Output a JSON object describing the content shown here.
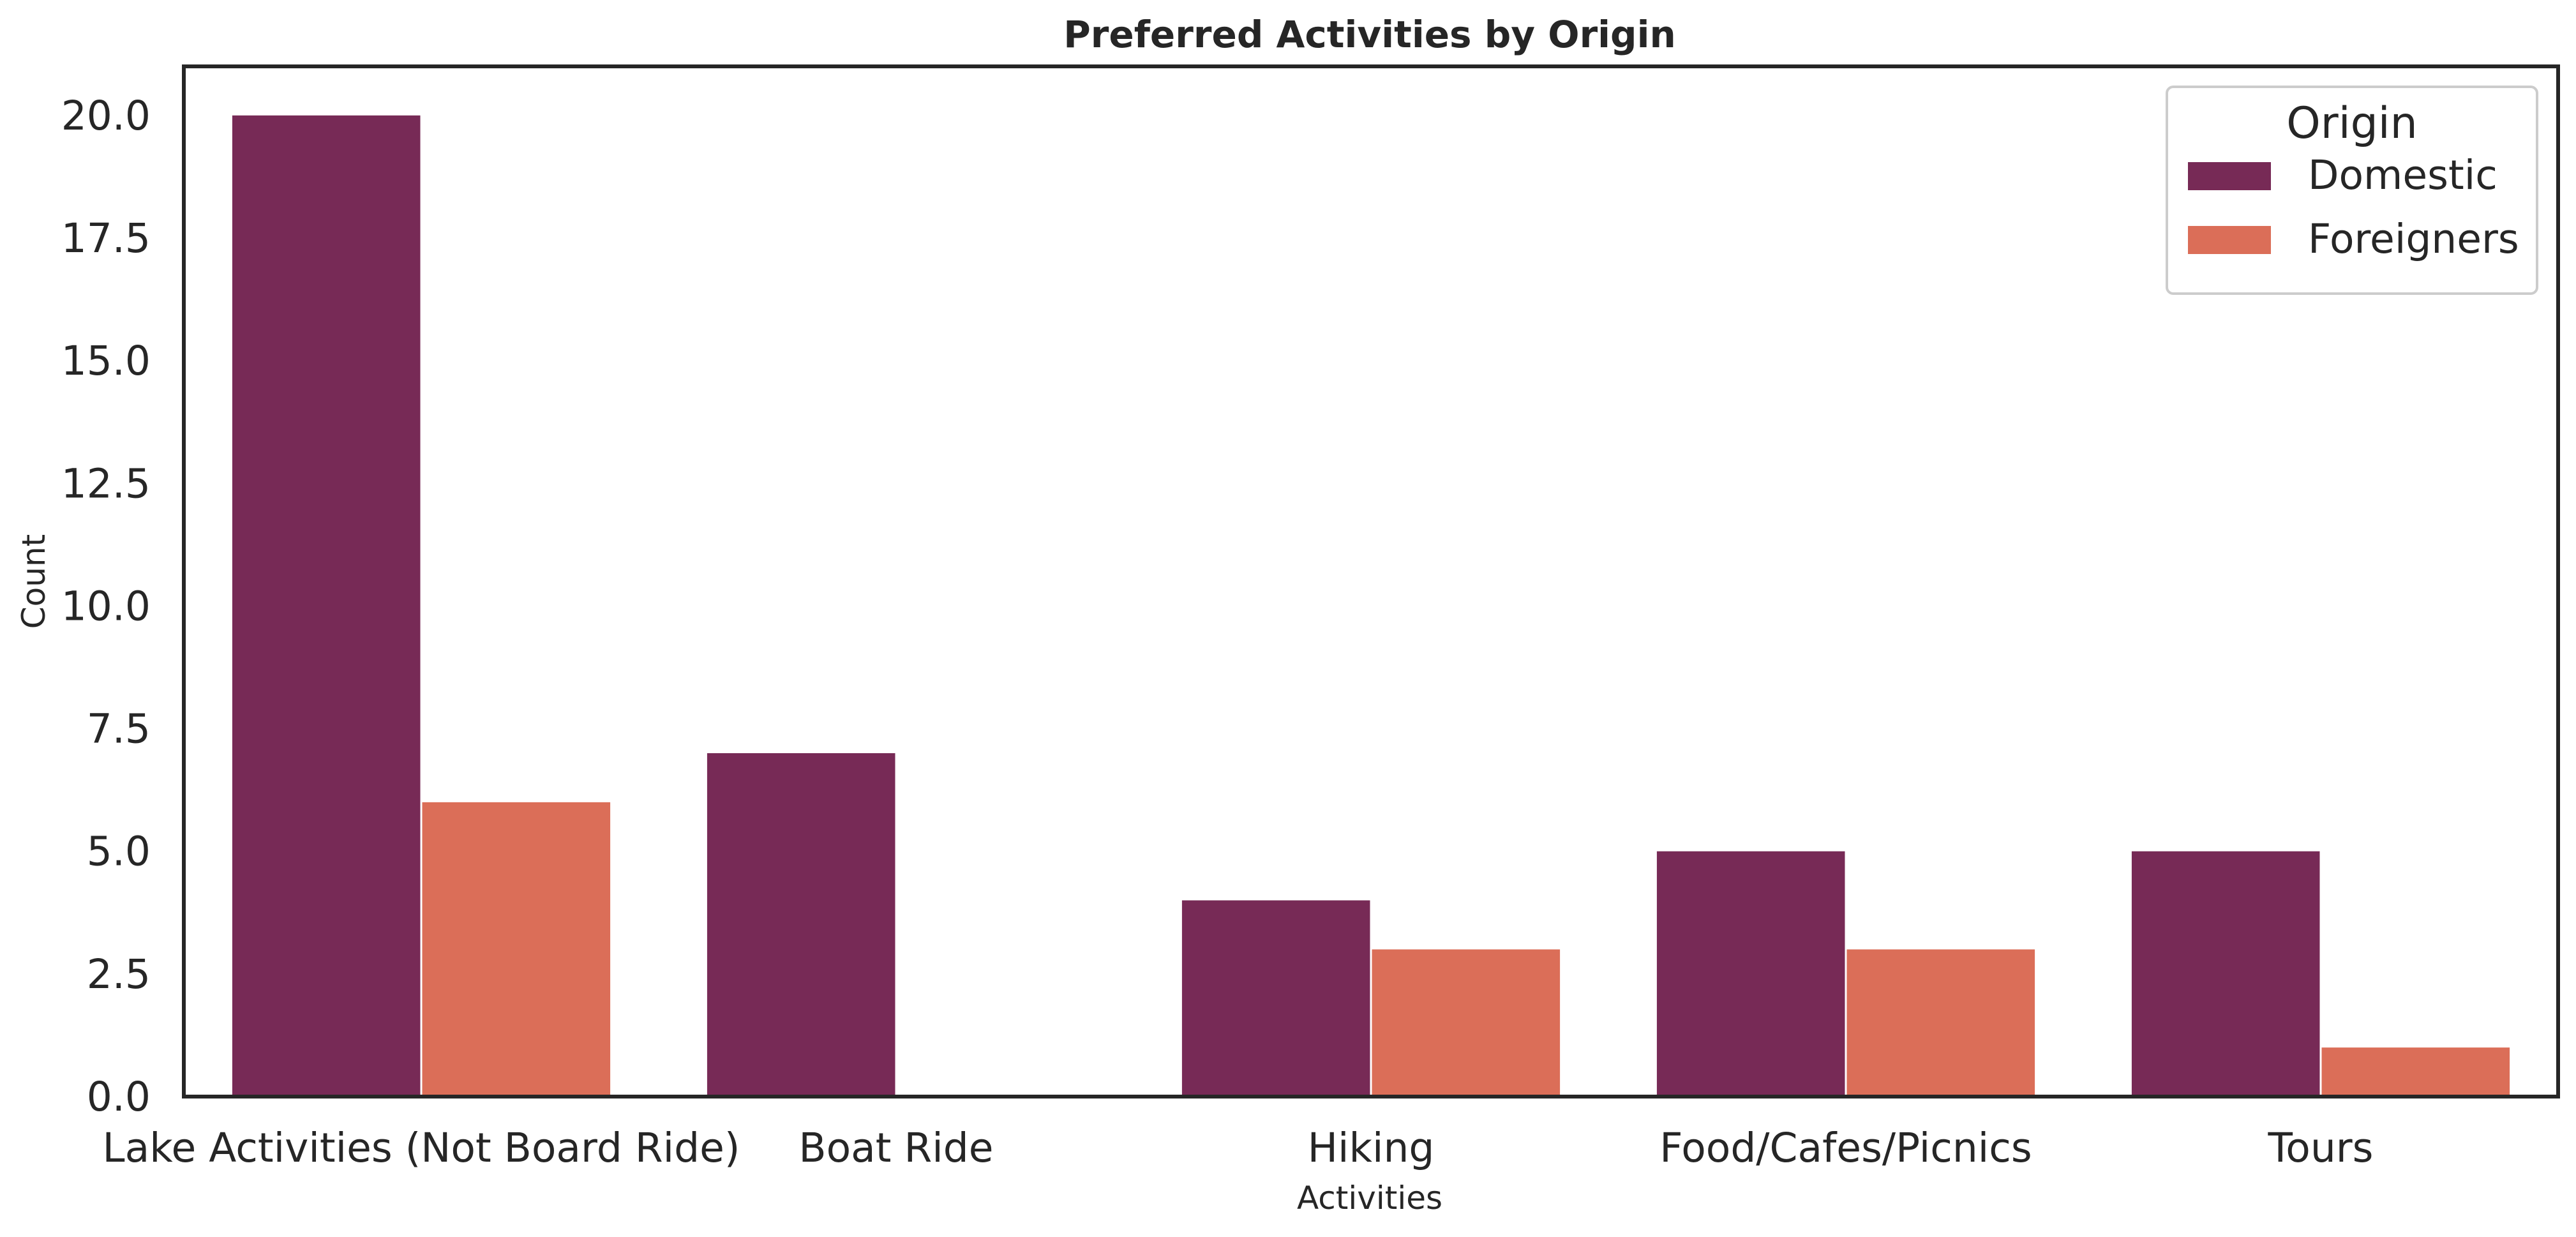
{
  "chart_data": {
    "type": "bar",
    "title": "Preferred Activities by Origin",
    "xlabel": "Activities",
    "ylabel": "Count",
    "categories": [
      "Lake Activities (Not Board Ride)",
      "Boat Ride",
      "Hiking",
      "Food/Cafes/Picnics",
      "Tours"
    ],
    "series": [
      {
        "name": "Domestic",
        "color": "#772a56",
        "values": [
          20,
          7,
          4,
          5,
          5
        ]
      },
      {
        "name": "Foreigners",
        "color": "#db6e58",
        "values": [
          6,
          0,
          3,
          3,
          1
        ]
      }
    ],
    "ylim": [
      0,
      21
    ],
    "yticks": [
      "0.0",
      "2.5",
      "5.0",
      "7.5",
      "10.0",
      "12.5",
      "15.0",
      "17.5",
      "20.0"
    ],
    "legend": {
      "title": "Origin",
      "position": "top-right"
    },
    "grid": false
  }
}
